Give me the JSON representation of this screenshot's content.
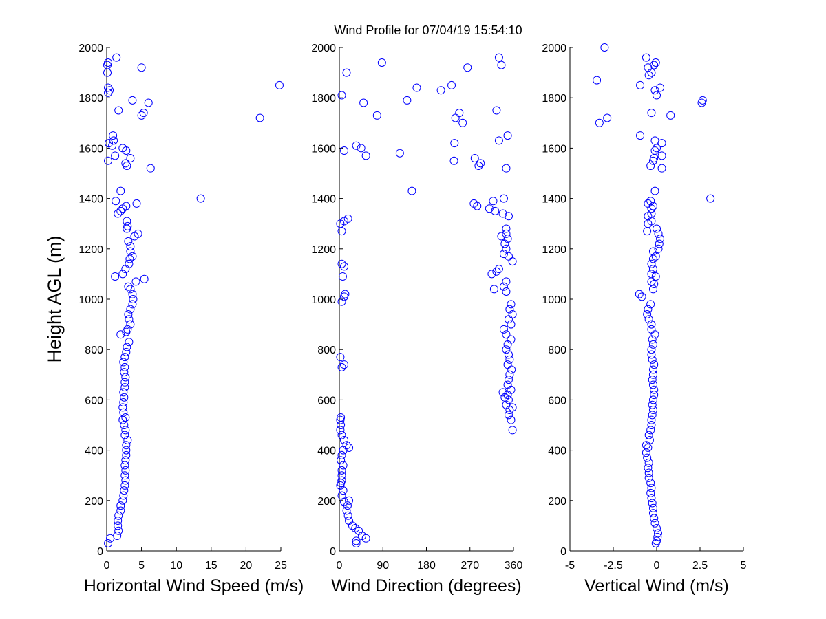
{
  "title": "Wind Profile for  07/04/19 15:54:10",
  "ylabel": "Height AGL (m)",
  "chart_data": [
    {
      "type": "scatter",
      "xlabel": "Horizontal Wind Speed (m/s)",
      "ylabel": "Height AGL (m)",
      "xlim": [
        0,
        25
      ],
      "ylim": [
        0,
        2000
      ],
      "xticks": [
        0,
        5,
        10,
        15,
        20,
        25
      ],
      "yticks": [
        0,
        200,
        400,
        600,
        800,
        1000,
        1200,
        1400,
        1600,
        1800,
        2000
      ],
      "marker_color": "#0000ff",
      "points": [
        [
          0.2,
          30
        ],
        [
          0.5,
          50
        ],
        [
          1.5,
          60
        ],
        [
          1.7,
          80
        ],
        [
          1.6,
          100
        ],
        [
          1.6,
          120
        ],
        [
          1.7,
          140
        ],
        [
          2.0,
          160
        ],
        [
          2.0,
          180
        ],
        [
          2.3,
          200
        ],
        [
          2.4,
          220
        ],
        [
          2.5,
          240
        ],
        [
          2.6,
          260
        ],
        [
          2.7,
          280
        ],
        [
          2.6,
          300
        ],
        [
          2.7,
          320
        ],
        [
          2.6,
          340
        ],
        [
          2.7,
          360
        ],
        [
          2.8,
          380
        ],
        [
          2.8,
          400
        ],
        [
          2.8,
          420
        ],
        [
          3.0,
          440
        ],
        [
          2.6,
          460
        ],
        [
          2.7,
          480
        ],
        [
          2.5,
          500
        ],
        [
          2.3,
          520
        ],
        [
          2.7,
          530
        ],
        [
          2.4,
          550
        ],
        [
          2.3,
          570
        ],
        [
          2.4,
          590
        ],
        [
          2.5,
          610
        ],
        [
          2.4,
          630
        ],
        [
          2.6,
          650
        ],
        [
          2.6,
          670
        ],
        [
          2.7,
          690
        ],
        [
          2.5,
          710
        ],
        [
          2.6,
          730
        ],
        [
          2.4,
          750
        ],
        [
          2.6,
          770
        ],
        [
          2.8,
          790
        ],
        [
          2.9,
          810
        ],
        [
          3.2,
          830
        ],
        [
          2.0,
          860
        ],
        [
          2.8,
          870
        ],
        [
          3.0,
          880
        ],
        [
          3.4,
          900
        ],
        [
          3.2,
          920
        ],
        [
          3.1,
          940
        ],
        [
          3.4,
          960
        ],
        [
          3.7,
          980
        ],
        [
          3.8,
          1000
        ],
        [
          3.7,
          1020
        ],
        [
          3.4,
          1040
        ],
        [
          3.1,
          1050
        ],
        [
          4.2,
          1070
        ],
        [
          5.4,
          1080
        ],
        [
          1.2,
          1090
        ],
        [
          2.3,
          1100
        ],
        [
          2.7,
          1120
        ],
        [
          3.2,
          1140
        ],
        [
          3.3,
          1160
        ],
        [
          3.7,
          1170
        ],
        [
          3.4,
          1190
        ],
        [
          3.4,
          1210
        ],
        [
          3.1,
          1230
        ],
        [
          4.0,
          1250
        ],
        [
          4.5,
          1260
        ],
        [
          2.9,
          1280
        ],
        [
          3.0,
          1290
        ],
        [
          2.9,
          1310
        ],
        [
          1.6,
          1340
        ],
        [
          2.0,
          1350
        ],
        [
          2.3,
          1360
        ],
        [
          2.8,
          1370
        ],
        [
          4.3,
          1380
        ],
        [
          1.3,
          1390
        ],
        [
          13.5,
          1400
        ],
        [
          2.0,
          1430
        ],
        [
          6.3,
          1520
        ],
        [
          2.9,
          1530
        ],
        [
          2.7,
          1540
        ],
        [
          0.2,
          1550
        ],
        [
          3.4,
          1560
        ],
        [
          1.2,
          1570
        ],
        [
          2.8,
          1590
        ],
        [
          2.3,
          1600
        ],
        [
          0.8,
          1610
        ],
        [
          0.3,
          1620
        ],
        [
          1.0,
          1630
        ],
        [
          0.9,
          1650
        ],
        [
          22.0,
          1720
        ],
        [
          5.0,
          1730
        ],
        [
          5.3,
          1740
        ],
        [
          1.7,
          1750
        ],
        [
          6.0,
          1780
        ],
        [
          3.7,
          1790
        ],
        [
          0.2,
          1820
        ],
        [
          0.4,
          1830
        ],
        [
          0.2,
          1840
        ],
        [
          24.8,
          1850
        ],
        [
          0.1,
          1900
        ],
        [
          5.0,
          1920
        ],
        [
          0.1,
          1930
        ],
        [
          0.2,
          1940
        ],
        [
          1.4,
          1960
        ]
      ]
    },
    {
      "type": "scatter",
      "xlabel": "Wind Direction (degrees)",
      "xlim": [
        0,
        360
      ],
      "ylim": [
        0,
        2000
      ],
      "xticks": [
        0,
        90,
        180,
        270,
        360
      ],
      "yticks": [
        0,
        200,
        400,
        600,
        800,
        1000,
        1200,
        1400,
        1600,
        1800,
        2000
      ],
      "marker_color": "#0000ff",
      "points": [
        [
          35,
          30
        ],
        [
          35,
          40
        ],
        [
          55,
          50
        ],
        [
          47,
          60
        ],
        [
          40,
          80
        ],
        [
          33,
          90
        ],
        [
          27,
          100
        ],
        [
          20,
          120
        ],
        [
          18,
          140
        ],
        [
          15,
          160
        ],
        [
          17,
          180
        ],
        [
          10,
          195
        ],
        [
          20,
          200
        ],
        [
          5,
          220
        ],
        [
          8,
          240
        ],
        [
          2,
          260
        ],
        [
          3,
          270
        ],
        [
          5,
          280
        ],
        [
          5,
          300
        ],
        [
          5,
          320
        ],
        [
          8,
          340
        ],
        [
          3,
          360
        ],
        [
          5,
          380
        ],
        [
          8,
          400
        ],
        [
          20,
          410
        ],
        [
          15,
          420
        ],
        [
          10,
          440
        ],
        [
          5,
          460
        ],
        [
          2,
          480
        ],
        [
          3,
          500
        ],
        [
          2,
          520
        ],
        [
          3,
          530
        ],
        [
          358,
          480
        ],
        [
          355,
          520
        ],
        [
          350,
          540
        ],
        [
          352,
          560
        ],
        [
          358,
          570
        ],
        [
          345,
          580
        ],
        [
          350,
          600
        ],
        [
          342,
          610
        ],
        [
          348,
          620
        ],
        [
          338,
          630
        ],
        [
          355,
          640
        ],
        [
          348,
          660
        ],
        [
          350,
          680
        ],
        [
          352,
          700
        ],
        [
          356,
          720
        ],
        [
          348,
          740
        ],
        [
          352,
          760
        ],
        [
          350,
          780
        ],
        [
          345,
          800
        ],
        [
          348,
          820
        ],
        [
          355,
          840
        ],
        [
          345,
          860
        ],
        [
          340,
          880
        ],
        [
          355,
          900
        ],
        [
          350,
          920
        ],
        [
          358,
          940
        ],
        [
          352,
          960
        ],
        [
          355,
          980
        ],
        [
          2,
          770
        ],
        [
          10,
          740
        ],
        [
          5,
          730
        ],
        [
          5,
          990
        ],
        [
          10,
          1010
        ],
        [
          12,
          1020
        ],
        [
          345,
          1030
        ],
        [
          340,
          1050
        ],
        [
          345,
          1070
        ],
        [
          320,
          1040
        ],
        [
          315,
          1100
        ],
        [
          325,
          1110
        ],
        [
          330,
          1120
        ],
        [
          7,
          1090
        ],
        [
          10,
          1130
        ],
        [
          5,
          1140
        ],
        [
          358,
          1150
        ],
        [
          350,
          1170
        ],
        [
          340,
          1180
        ],
        [
          345,
          1200
        ],
        [
          342,
          1220
        ],
        [
          348,
          1240
        ],
        [
          335,
          1250
        ],
        [
          345,
          1260
        ],
        [
          345,
          1280
        ],
        [
          18,
          1320
        ],
        [
          10,
          1310
        ],
        [
          2,
          1300
        ],
        [
          5,
          1270
        ],
        [
          350,
          1330
        ],
        [
          338,
          1340
        ],
        [
          322,
          1350
        ],
        [
          310,
          1360
        ],
        [
          285,
          1370
        ],
        [
          278,
          1380
        ],
        [
          318,
          1390
        ],
        [
          340,
          1400
        ],
        [
          150,
          1430
        ],
        [
          345,
          1520
        ],
        [
          288,
          1530
        ],
        [
          292,
          1540
        ],
        [
          280,
          1560
        ],
        [
          237,
          1550
        ],
        [
          55,
          1570
        ],
        [
          125,
          1580
        ],
        [
          10,
          1590
        ],
        [
          45,
          1600
        ],
        [
          35,
          1610
        ],
        [
          238,
          1620
        ],
        [
          330,
          1630
        ],
        [
          348,
          1650
        ],
        [
          255,
          1700
        ],
        [
          240,
          1720
        ],
        [
          78,
          1730
        ],
        [
          248,
          1740
        ],
        [
          325,
          1750
        ],
        [
          50,
          1780
        ],
        [
          140,
          1790
        ],
        [
          5,
          1810
        ],
        [
          210,
          1830
        ],
        [
          160,
          1840
        ],
        [
          232,
          1850
        ],
        [
          15,
          1900
        ],
        [
          265,
          1920
        ],
        [
          335,
          1930
        ],
        [
          88,
          1940
        ],
        [
          330,
          1960
        ]
      ]
    },
    {
      "type": "scatter",
      "xlabel": "Vertical Wind (m/s)",
      "xlim": [
        -5,
        5
      ],
      "ylim": [
        0,
        2000
      ],
      "xticks": [
        -5,
        -2.5,
        0,
        2.5,
        5
      ],
      "xtick_labels": [
        "-5",
        "-2.5",
        "0",
        "2.5",
        "5"
      ],
      "yticks": [
        0,
        200,
        400,
        600,
        800,
        1000,
        1200,
        1400,
        1600,
        1800,
        2000
      ],
      "marker_color": "#0000ff",
      "points": [
        [
          -0.05,
          30
        ],
        [
          0.0,
          40
        ],
        [
          0.05,
          55
        ],
        [
          0.08,
          70
        ],
        [
          0.0,
          90
        ],
        [
          -0.1,
          110
        ],
        [
          -0.15,
          130
        ],
        [
          -0.2,
          150
        ],
        [
          -0.2,
          170
        ],
        [
          -0.25,
          190
        ],
        [
          -0.3,
          210
        ],
        [
          -0.35,
          230
        ],
        [
          -0.3,
          250
        ],
        [
          -0.35,
          270
        ],
        [
          -0.45,
          290
        ],
        [
          -0.45,
          310
        ],
        [
          -0.5,
          330
        ],
        [
          -0.45,
          350
        ],
        [
          -0.55,
          370
        ],
        [
          -0.6,
          390
        ],
        [
          -0.5,
          410
        ],
        [
          -0.6,
          420
        ],
        [
          -0.4,
          440
        ],
        [
          -0.45,
          460
        ],
        [
          -0.35,
          480
        ],
        [
          -0.3,
          500
        ],
        [
          -0.3,
          520
        ],
        [
          -0.25,
          540
        ],
        [
          -0.2,
          560
        ],
        [
          -0.25,
          580
        ],
        [
          -0.2,
          600
        ],
        [
          -0.15,
          620
        ],
        [
          -0.15,
          640
        ],
        [
          -0.2,
          660
        ],
        [
          -0.25,
          680
        ],
        [
          -0.2,
          700
        ],
        [
          -0.2,
          720
        ],
        [
          -0.15,
          740
        ],
        [
          -0.25,
          760
        ],
        [
          -0.3,
          780
        ],
        [
          -0.3,
          800
        ],
        [
          -0.2,
          820
        ],
        [
          -0.25,
          840
        ],
        [
          -0.1,
          860
        ],
        [
          -0.3,
          880
        ],
        [
          -0.3,
          900
        ],
        [
          -0.45,
          920
        ],
        [
          -0.55,
          940
        ],
        [
          -0.5,
          960
        ],
        [
          -0.35,
          980
        ],
        [
          -0.85,
          1010
        ],
        [
          -1.0,
          1020
        ],
        [
          -0.2,
          1040
        ],
        [
          -0.15,
          1060
        ],
        [
          -0.3,
          1070
        ],
        [
          -0.05,
          1090
        ],
        [
          -0.3,
          1100
        ],
        [
          -0.2,
          1120
        ],
        [
          -0.3,
          1140
        ],
        [
          -0.2,
          1160
        ],
        [
          -0.05,
          1170
        ],
        [
          -0.2,
          1190
        ],
        [
          0.1,
          1200
        ],
        [
          0.15,
          1220
        ],
        [
          0.2,
          1240
        ],
        [
          0.1,
          1260
        ],
        [
          -0.55,
          1270
        ],
        [
          0.0,
          1280
        ],
        [
          -0.5,
          1300
        ],
        [
          -0.3,
          1310
        ],
        [
          -0.5,
          1330
        ],
        [
          -0.3,
          1340
        ],
        [
          -0.3,
          1360
        ],
        [
          -0.2,
          1370
        ],
        [
          -0.35,
          1390
        ],
        [
          -0.5,
          1380
        ],
        [
          3.1,
          1400
        ],
        [
          -0.1,
          1430
        ],
        [
          0.3,
          1520
        ],
        [
          -0.35,
          1530
        ],
        [
          -0.2,
          1550
        ],
        [
          -0.15,
          1560
        ],
        [
          0.3,
          1570
        ],
        [
          -0.1,
          1590
        ],
        [
          -0.0,
          1600
        ],
        [
          0.3,
          1620
        ],
        [
          -0.1,
          1630
        ],
        [
          -0.95,
          1650
        ],
        [
          -3.3,
          1700
        ],
        [
          -2.85,
          1720
        ],
        [
          -0.3,
          1740
        ],
        [
          0.8,
          1730
        ],
        [
          2.6,
          1780
        ],
        [
          2.65,
          1790
        ],
        [
          -0.0,
          1810
        ],
        [
          -0.1,
          1830
        ],
        [
          0.2,
          1840
        ],
        [
          -0.95,
          1850
        ],
        [
          -3.45,
          1870
        ],
        [
          -0.45,
          1890
        ],
        [
          -0.3,
          1900
        ],
        [
          -0.5,
          1920
        ],
        [
          -0.15,
          1930
        ],
        [
          -0.05,
          1940
        ],
        [
          -0.6,
          1960
        ],
        [
          -3.0,
          2000
        ]
      ]
    }
  ]
}
